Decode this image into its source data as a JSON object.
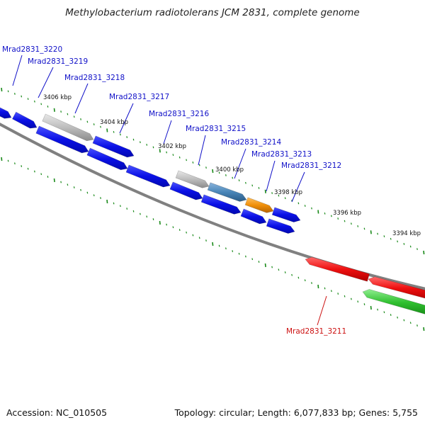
{
  "title": "Methylobacterium radiotolerans JCM 2831, complete genome",
  "footer": {
    "accession": "Accession: NC_010505",
    "summary": "Topology: circular; Length: 6,077,833 bp; Genes: 5,755"
  },
  "colors": {
    "blue_gene": "#0a10e6",
    "gray_gene": "#b4b4b4",
    "steel_gene": "#4a86b8",
    "orange_gene": "#f0900a",
    "red_gene": "#ee1010",
    "green_gene": "#30c030",
    "label_blue": "#1010c8",
    "label_red": "#cc1010",
    "backbone": "#808080",
    "tick": "#1a8a1a"
  },
  "scale_labels": [
    "3406 kbp",
    "3404 kbp",
    "3402 kbp",
    "3400 kbp",
    "3398 kbp",
    "3396 kbp",
    "3394 kbp"
  ],
  "gene_labels": [
    {
      "name": "Mrad2831_3220",
      "color": "blue"
    },
    {
      "name": "Mrad2831_3219",
      "color": "blue"
    },
    {
      "name": "Mrad2831_3218",
      "color": "blue"
    },
    {
      "name": "Mrad2831_3217",
      "color": "blue"
    },
    {
      "name": "Mrad2831_3216",
      "color": "blue"
    },
    {
      "name": "Mrad2831_3215",
      "color": "blue"
    },
    {
      "name": "Mrad2831_3214",
      "color": "blue"
    },
    {
      "name": "Mrad2831_3213",
      "color": "blue"
    },
    {
      "name": "Mrad2831_3212",
      "color": "blue"
    },
    {
      "name": "Mrad2831_3211",
      "color": "red"
    }
  ]
}
